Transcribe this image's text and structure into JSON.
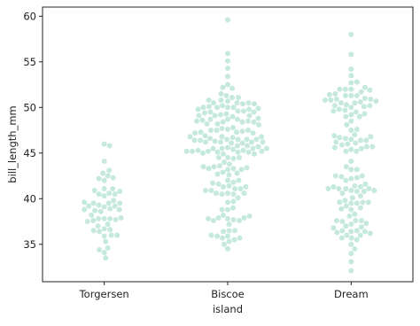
{
  "chart_data": {
    "type": "swarm",
    "x_label": "island",
    "y_label": "bill_length_mm",
    "categories": [
      "Torgersen",
      "Biscoe",
      "Dream"
    ],
    "color": "#c6e9dd",
    "ylim": [
      30.9,
      61.0
    ],
    "yticks": [
      35,
      40,
      45,
      50,
      55,
      60
    ],
    "values": [
      [
        39.1,
        39.5,
        40.3,
        36.7,
        39.3,
        38.9,
        39.2,
        34.1,
        42,
        37.8,
        37.8,
        41.1,
        38.6,
        34.6,
        36.6,
        38.7,
        42.5,
        34.4,
        46,
        37.8,
        37.7,
        35.9,
        38.2,
        38.8,
        35.3,
        40.6,
        40.5,
        37.9,
        40.5,
        39.5,
        37.2,
        39.5,
        40.9,
        36.4,
        39.2,
        38.8,
        42.2,
        37.6,
        39.8,
        36.5,
        40.8,
        36,
        44.1,
        37,
        39.6,
        41.1,
        37.5,
        36,
        42.3,
        45.8,
        42.8,
        33.5,
        43.1
      ],
      [
        37.8,
        37.7,
        35.9,
        38.2,
        38.8,
        35.3,
        40.6,
        40.5,
        37.9,
        40.5,
        39.6,
        40.1,
        35.0,
        42.0,
        34.5,
        41.4,
        39.0,
        40.6,
        36.5,
        37.6,
        35.7,
        41.3,
        37.6,
        41.1,
        36.4,
        41.6,
        35.5,
        41.1,
        35.9,
        41.8,
        38.8,
        37.9,
        39.7,
        37.8,
        40.9,
        36.5,
        45.6,
        35.7,
        41.3,
        37.2,
        40.6,
        36.0,
        43.2,
        38.1,
        46.1,
        50,
        48.7,
        50,
        47.6,
        46.5,
        45.4,
        46.7,
        43.3,
        46.8,
        40.9,
        49,
        45.5,
        48.4,
        45.8,
        49.3,
        42,
        49.2,
        46.2,
        48.7,
        50.2,
        45.1,
        46.5,
        46.3,
        42.9,
        46.1,
        44.5,
        47.8,
        48.2,
        50,
        47.3,
        42.8,
        45.1,
        59.6,
        49.1,
        48.4,
        42.6,
        44.4,
        44,
        48.7,
        42.7,
        49.6,
        45.3,
        49.6,
        50.5,
        43.6,
        45.5,
        50.5,
        44.9,
        45.2,
        46.6,
        48.5,
        45.1,
        50.1,
        46.5,
        45,
        43.8,
        45.5,
        43.2,
        50.4,
        45.3,
        46.2,
        45.7,
        54.3,
        45.8,
        49.8,
        46.2,
        49.5,
        43.5,
        50.7,
        47.7,
        46.4,
        48.2,
        46.5,
        46.4,
        48.6,
        47.5,
        51.1,
        45.2,
        45.2,
        49.1,
        52.5,
        47.4,
        50,
        44.9,
        50.8,
        43.4,
        51.3,
        47.5,
        52.1,
        47.5,
        52.2,
        45.5,
        49.5,
        44.5,
        50.8,
        49.4,
        46.9,
        48.4,
        51.1,
        48.5,
        55.9,
        47.2,
        49.1,
        47.3,
        46.8,
        41.7,
        53.4,
        43.3,
        48.1,
        50.5,
        49.8,
        43.5,
        51.5,
        46.2,
        55.1,
        44.5,
        48.8,
        47.2,
        46.8,
        50.4,
        45.2,
        49.9
      ],
      [
        39.5,
        37.2,
        39.5,
        40.9,
        36.4,
        39.2,
        38.8,
        42.2,
        37.6,
        39.8,
        36.5,
        40.8,
        36,
        44.1,
        37,
        39.6,
        41.1,
        37.5,
        36,
        42.3,
        39.6,
        40.1,
        35,
        42,
        34.5,
        41.4,
        39,
        40.6,
        36.5,
        37.6,
        35.7,
        41.3,
        37.6,
        41.1,
        36.4,
        41.6,
        35.5,
        41.1,
        32.1,
        37.3,
        41.3,
        36.3,
        36.9,
        38.3,
        38.9,
        35.7,
        41.1,
        34,
        39.6,
        36.2,
        40.8,
        38.1,
        40.3,
        33.1,
        43.2,
        36.8,
        46.5,
        50,
        51.3,
        45.4,
        52.7,
        45.2,
        46.1,
        51.3,
        46,
        51.3,
        46.6,
        51.7,
        47,
        52,
        45.9,
        50.5,
        50.3,
        58,
        46.4,
        49.2,
        42.4,
        48.5,
        43.2,
        50.6,
        46.7,
        52,
        50.5,
        49.5,
        46.4,
        52.8,
        40.9,
        54.2,
        42.5,
        51,
        49.7,
        47.5,
        47.6,
        52,
        46.9,
        53.5,
        49,
        46.2,
        50.9,
        45.5,
        50.9,
        50.8,
        50.1,
        49,
        51.5,
        49.8,
        48.1,
        51.4,
        45.7,
        50.7,
        42.5,
        52.2,
        45.2,
        49.3,
        50.2,
        45.6,
        51.9,
        46.8,
        45.7,
        55.8,
        43.5,
        49.6,
        50.8,
        50.2
      ]
    ]
  }
}
